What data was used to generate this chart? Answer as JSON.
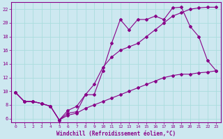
{
  "xlabel": "Windchill (Refroidissement éolien,°C)",
  "bg_color": "#cde8f0",
  "line_color": "#880088",
  "grid_color": "#aadddd",
  "xlim": [
    -0.5,
    23.5
  ],
  "ylim": [
    5.5,
    23.0
  ],
  "yticks": [
    6,
    8,
    10,
    12,
    14,
    16,
    18,
    20,
    22
  ],
  "xticks": [
    0,
    1,
    2,
    3,
    4,
    5,
    6,
    7,
    8,
    9,
    10,
    11,
    12,
    13,
    14,
    15,
    16,
    17,
    18,
    19,
    20,
    21,
    22,
    23
  ],
  "line_upper_x": [
    0,
    1,
    2,
    3,
    4,
    5,
    6,
    7,
    8,
    9,
    10,
    11,
    12,
    13,
    14,
    15,
    16,
    17,
    18,
    19,
    20,
    21,
    22,
    23
  ],
  "line_upper_y": [
    9.8,
    8.5,
    8.5,
    8.2,
    7.8,
    5.8,
    6.8,
    7.0,
    9.5,
    9.5,
    13.0,
    17.0,
    20.5,
    19.0,
    20.5,
    20.5,
    21.0,
    20.5,
    22.2,
    22.3,
    19.5,
    18.0,
    14.5,
    13.0
  ],
  "line_mid_x": [
    0,
    1,
    2,
    3,
    4,
    5,
    6,
    7,
    8,
    9,
    10,
    11,
    12,
    13,
    14,
    15,
    16,
    17,
    18,
    19,
    20,
    21,
    22,
    23
  ],
  "line_mid_y": [
    9.8,
    8.5,
    8.5,
    8.2,
    7.8,
    5.8,
    7.2,
    7.8,
    9.5,
    11.0,
    13.5,
    15.0,
    16.0,
    16.5,
    17.0,
    18.0,
    19.0,
    20.0,
    21.0,
    21.5,
    22.0,
    22.2,
    22.3,
    22.3
  ],
  "line_lower_x": [
    0,
    1,
    2,
    3,
    4,
    5,
    6,
    7,
    8,
    9,
    10,
    11,
    12,
    13,
    14,
    15,
    16,
    17,
    18,
    19,
    20,
    21,
    22,
    23
  ],
  "line_lower_y": [
    9.8,
    8.5,
    8.5,
    8.2,
    7.8,
    5.8,
    6.5,
    6.8,
    7.5,
    8.0,
    8.5,
    9.0,
    9.5,
    10.0,
    10.5,
    11.0,
    11.5,
    12.0,
    12.3,
    12.5,
    12.5,
    12.7,
    12.8,
    13.0
  ]
}
